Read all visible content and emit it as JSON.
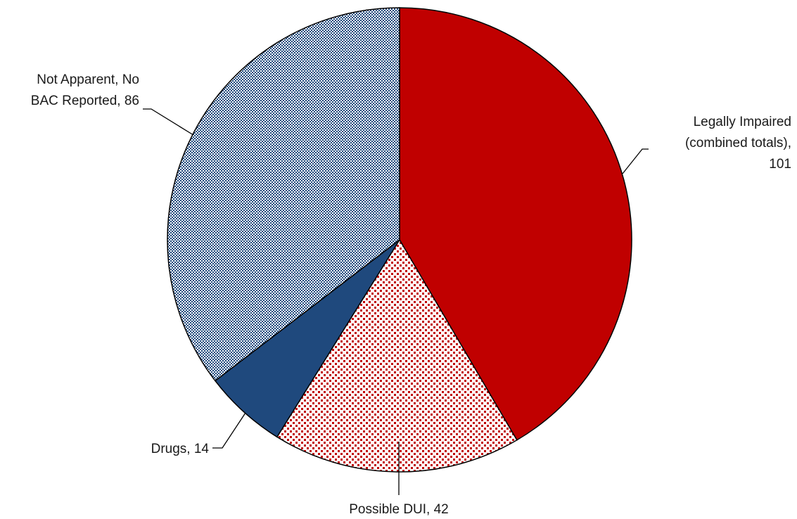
{
  "chart_data": {
    "type": "pie",
    "title": "",
    "slices": [
      {
        "label": "Legally Impaired (combined totals)",
        "value": 101,
        "color": "#C00000",
        "pattern": "solid"
      },
      {
        "label": "Possible DUI",
        "value": 42,
        "color": "#C00000",
        "pattern": "dotted"
      },
      {
        "label": "Drugs",
        "value": 14,
        "color": "#1F497D",
        "pattern": "solid"
      },
      {
        "label": "Not Apparent, No BAC Reported",
        "value": 86,
        "color": "#1F497D",
        "pattern": "checkered"
      }
    ],
    "data_labels": [
      {
        "lines": [
          "Legally Impaired",
          "(combined totals),",
          "101"
        ]
      },
      {
        "lines": [
          "Possible DUI, 42"
        ]
      },
      {
        "lines": [
          "Drugs, 14"
        ]
      },
      {
        "lines": [
          "Not Apparent, No",
          "BAC Reported, 86"
        ]
      }
    ],
    "start_angle_deg": 0,
    "direction": "clockwise",
    "legend": "none"
  }
}
